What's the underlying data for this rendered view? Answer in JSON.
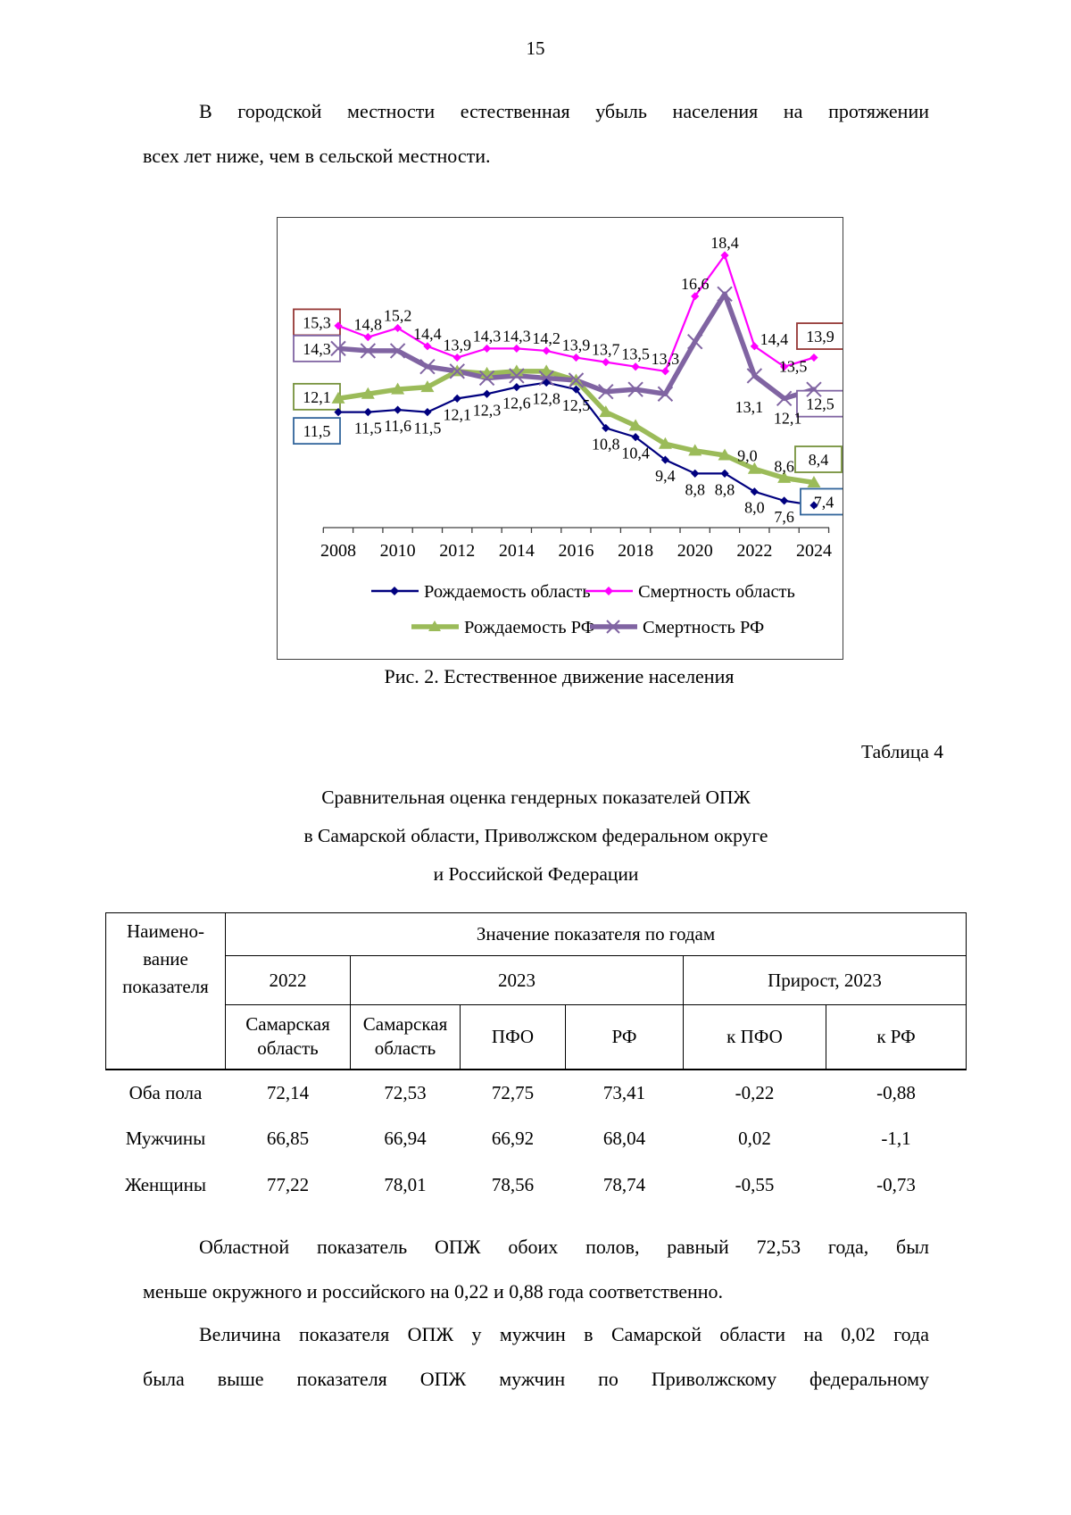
{
  "page": {
    "number": "15"
  },
  "paragraphs": {
    "p1_lines": [
      "В городской местности естественная убыль населения на протяжении",
      "всех лет ниже, чем в сельской местности."
    ],
    "p2_lines": [
      "Областной показатель ОПЖ обоих полов, равный 72,53 года, был",
      "меньше окружного и российского на 0,22 и 0,88 года соответственно."
    ],
    "p3_lines": [
      "Величина показателя ОПЖ у мужчин в Самарской области на 0,02 года",
      "была выше показателя ОПЖ мужчин по Приволжскому федеральному"
    ]
  },
  "figure": {
    "caption": "Рис. 2. Естественное движение населения"
  },
  "chart_data": {
    "type": "line",
    "x": [
      2008,
      2009,
      2010,
      2011,
      2012,
      2013,
      2014,
      2015,
      2016,
      2017,
      2018,
      2019,
      2020,
      2021,
      2022,
      2023,
      2024
    ],
    "x_tick_labels": [
      "2008",
      "2010",
      "2012",
      "2014",
      "2016",
      "2018",
      "2020",
      "2022",
      "2024"
    ],
    "ylim": [
      7,
      19
    ],
    "y_axis_visible": false,
    "grid": false,
    "legend_position": "bottom",
    "series": [
      {
        "name": "Рождаемость область",
        "color": "#00007f",
        "marker": "diamond",
        "thick": false,
        "label_side": "below",
        "box_color": "#31649b",
        "values": [
          11.5,
          11.5,
          11.6,
          11.5,
          12.1,
          12.3,
          12.6,
          12.8,
          12.5,
          10.8,
          10.4,
          9.4,
          8.8,
          8.8,
          8.0,
          7.6,
          7.4
        ],
        "labels": [
          "11,5",
          "11,5",
          "11,6",
          "11,5",
          "12,1",
          "12,3",
          "12,6",
          "12,8",
          "12,5",
          "10,8",
          "10,4",
          "9,4",
          "8,8",
          "8,8",
          "8,0",
          "7,6",
          "7,4"
        ]
      },
      {
        "name": "Смертность область",
        "color": "#ff00ff",
        "marker": "diamond",
        "thick": false,
        "label_side": "above",
        "box_color": "#953735",
        "values": [
          15.3,
          14.8,
          15.2,
          14.4,
          13.9,
          14.3,
          14.3,
          14.2,
          13.9,
          13.7,
          13.5,
          13.3,
          16.6,
          18.4,
          14.4,
          13.5,
          13.9
        ],
        "labels": [
          "15,3",
          "14,8",
          "15,2",
          "14,4",
          "13,9",
          "14,3",
          "14,3",
          "14,2",
          "13,9",
          "13,7",
          "13,5",
          "13,3",
          "16,6",
          "18,4",
          "14,4",
          "13,5",
          "13,9"
        ]
      },
      {
        "name": "Рождаемость РФ",
        "color": "#9bbb59",
        "marker": "triangle",
        "thick": true,
        "label_side": "above",
        "box_color": "#76923c",
        "values": [
          12.1,
          12.3,
          12.5,
          12.6,
          13.3,
          13.2,
          13.3,
          13.3,
          12.9,
          11.5,
          10.9,
          10.1,
          9.8,
          9.6,
          9.0,
          8.6,
          8.4
        ],
        "labels": [
          "12,1",
          null,
          null,
          null,
          null,
          null,
          null,
          null,
          null,
          null,
          null,
          null,
          null,
          null,
          "9,0",
          "8,6",
          "8,4"
        ]
      },
      {
        "name": "Смертность РФ",
        "color": "#8064a2",
        "marker": "x",
        "thick": true,
        "label_side": "below",
        "box_color": "#8064a2",
        "values": [
          14.3,
          14.2,
          14.2,
          13.5,
          13.3,
          13.0,
          13.1,
          13.0,
          12.9,
          12.4,
          12.5,
          12.3,
          14.6,
          16.7,
          13.1,
          12.1,
          12.5
        ],
        "labels": [
          "14,3",
          null,
          null,
          null,
          null,
          null,
          null,
          null,
          null,
          null,
          null,
          null,
          null,
          null,
          "13,1",
          "12,1",
          "12,5"
        ]
      }
    ]
  },
  "table": {
    "label": "Таблица 4",
    "title_lines": [
      "Сравнительная оценка гендерных показателей ОПЖ",
      "в Самарской области, Приволжском федеральном округе",
      "и Российской Федерации"
    ],
    "header": {
      "col0_lines": [
        "Наимено-",
        "вание",
        "показателя"
      ],
      "group": "Значение показателя по годам",
      "year_2022": "2022",
      "year_2023": "2023",
      "growth": "Прирост, 2023",
      "subheaders": [
        "Самарская область",
        "Самарская область",
        "ПФО",
        "РФ",
        "к ПФО",
        "к РФ"
      ]
    },
    "rows": [
      {
        "label": "Оба пола",
        "values": [
          "72,14",
          "72,53",
          "72,75",
          "73,41",
          "-0,22",
          "-0,88"
        ]
      },
      {
        "label": "Мужчины",
        "values": [
          "66,85",
          "66,94",
          "66,92",
          "68,04",
          "0,02",
          "-1,1"
        ]
      },
      {
        "label": "Женщины",
        "values": [
          "77,22",
          "78,01",
          "78,56",
          "78,74",
          "-0,55",
          "-0,73"
        ]
      }
    ]
  }
}
